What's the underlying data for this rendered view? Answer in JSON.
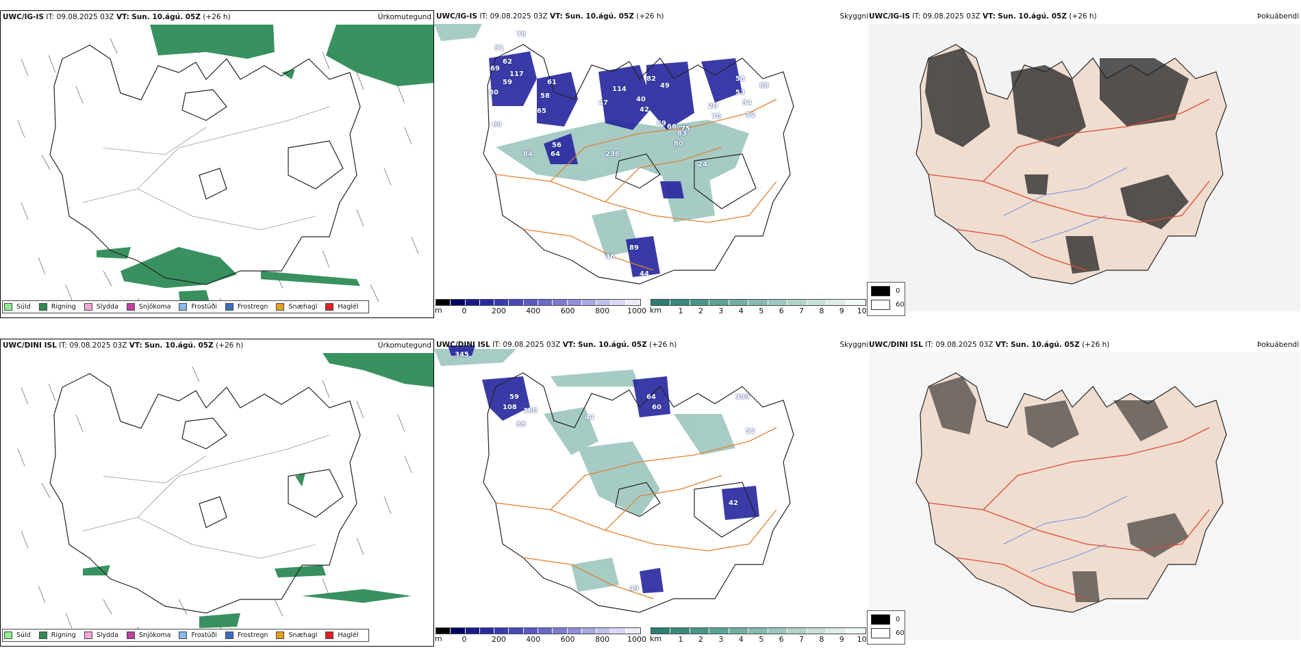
{
  "rows": [
    {
      "model": "UWC/IG-IS",
      "issue_time_label": "IT:",
      "issue_time": "09.08.2025 03Z",
      "valid_time_label": "VT:",
      "valid_time": "Sun. 10.ágú. 05Z",
      "lead": "(+26 h)",
      "precip_labels": [
        "78",
        "51",
        "62",
        "69",
        "117",
        "59",
        "61",
        "80",
        "58",
        "65",
        "69",
        "56",
        "64",
        "84",
        "114",
        "47",
        "82",
        "49",
        "40",
        "42",
        "69",
        "66",
        "75",
        "80",
        "83",
        "20",
        "70",
        "53",
        "54",
        "88",
        "58",
        "52",
        "236",
        "24",
        "44",
        "89",
        "36"
      ]
    },
    {
      "model": "UWC/DINI ISL",
      "issue_time_label": "IT:",
      "issue_time": "09.08.2025 03Z",
      "valid_time_label": "VT:",
      "valid_time": "Sun. 10.ágú. 05Z",
      "lead": "(+26 h)",
      "precip_labels": [
        "345",
        "59",
        "108",
        "168",
        "85",
        "44",
        "64",
        "60",
        "359",
        "52",
        "42",
        "49"
      ]
    }
  ],
  "titles": {
    "precip_type": "Úrkomutegund",
    "visibility": "Skyggni",
    "fog_index": "Þokuábendi"
  },
  "precip_type_legend": [
    {
      "label": "Súld",
      "color": "#90ee90"
    },
    {
      "label": "Rigning",
      "color": "#2e8b57"
    },
    {
      "label": "Slydda",
      "color": "#f4a6d7"
    },
    {
      "label": "Snjókoma",
      "color": "#c040a0"
    },
    {
      "label": "Frostúði",
      "color": "#87b8ee"
    },
    {
      "label": "Frostregn",
      "color": "#3a6fc0"
    },
    {
      "label": "Snæhagl",
      "color": "#e8a020"
    },
    {
      "label": "Haglél",
      "color": "#e02020"
    }
  ],
  "ceiling_scale": {
    "unit": "m",
    "ticks": [
      "0",
      "200",
      "400",
      "600",
      "800",
      "1000"
    ],
    "colors": [
      "#000000",
      "#000060",
      "#1a1a8c",
      "#2a2aa0",
      "#3a3ab0",
      "#4848b8",
      "#5858c0",
      "#6a6ac8",
      "#7c7cd0",
      "#9090d8",
      "#a8a8e2",
      "#c0c0ec",
      "#d8d8f4",
      "#ececfa"
    ]
  },
  "visibility_scale": {
    "unit": "km",
    "ticks": [
      "1",
      "2",
      "3",
      "4",
      "5",
      "6",
      "7",
      "8",
      "9",
      "10"
    ],
    "colors": [
      "#2a7f72",
      "#3a8a7e",
      "#4b968a",
      "#5ea296",
      "#72aea3",
      "#86bab0",
      "#9cc7be",
      "#b2d4cc",
      "#c8e0da",
      "#deece8",
      "#f2f8f6"
    ]
  },
  "fog_legend": [
    {
      "label": "0",
      "color": "#000000"
    },
    {
      "label": "60",
      "color": "#ffffff"
    }
  ]
}
